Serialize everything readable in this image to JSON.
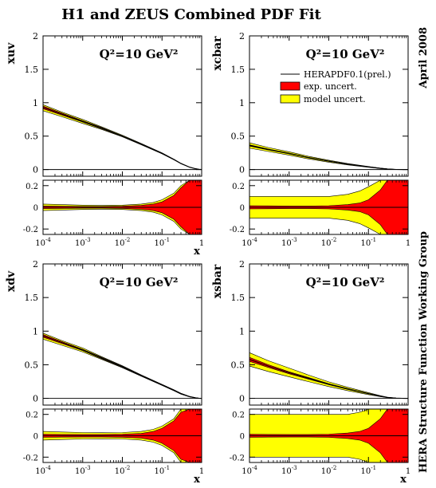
{
  "title": "H1 and ZEUS Combined PDF Fit",
  "side_labels": {
    "date": "April 2008",
    "group": "HERA Structure Function Working Group"
  },
  "colors": {
    "exp": "#ff0000",
    "model": "#ffff00",
    "line": "#000000"
  },
  "legend": {
    "central": "HERAPDF0.1(prel.)",
    "exp": "exp. uncert.",
    "model": "model uncert."
  },
  "chart_data": [
    {
      "type": "area",
      "panel": "top-left",
      "ylabel": "xuv",
      "annotation": "Q²=10 GeV²",
      "ylim": [
        -0.1,
        2
      ],
      "yticks": [
        0,
        0.5,
        1,
        1.5,
        2
      ],
      "xlim": [
        0.0001,
        1
      ],
      "x": [
        0.0001,
        0.0003,
        0.001,
        0.003,
        0.01,
        0.03,
        0.1,
        0.2,
        0.3,
        0.5,
        0.7,
        0.85,
        1
      ],
      "series": [
        {
          "name": "central",
          "values": [
            0.93,
            0.83,
            0.72,
            0.62,
            0.5,
            0.38,
            0.24,
            0.15,
            0.09,
            0.035,
            0.012,
            0.004,
            0
          ]
        },
        {
          "name": "model_lo",
          "values": [
            0.88,
            0.79,
            0.69,
            0.6,
            0.49,
            0.37,
            0.235,
            0.145,
            0.088,
            0.033,
            0.011,
            0.003,
            0
          ]
        },
        {
          "name": "model_hi",
          "values": [
            0.97,
            0.86,
            0.75,
            0.64,
            0.515,
            0.39,
            0.25,
            0.155,
            0.095,
            0.037,
            0.013,
            0.005,
            0
          ]
        },
        {
          "name": "exp_lo",
          "values": [
            0.91,
            0.815,
            0.71,
            0.61,
            0.495,
            0.375,
            0.237,
            0.148,
            0.089,
            0.034,
            0.0115,
            0.0035,
            0
          ]
        },
        {
          "name": "exp_hi",
          "values": [
            0.95,
            0.845,
            0.73,
            0.63,
            0.505,
            0.385,
            0.243,
            0.152,
            0.091,
            0.036,
            0.0125,
            0.0045,
            0
          ]
        }
      ]
    },
    {
      "type": "area",
      "panel": "top-right",
      "ylabel": "xcbar",
      "annotation": "Q²=10 GeV²",
      "ylim": [
        -0.1,
        2
      ],
      "yticks": [
        0,
        0.5,
        1,
        1.5,
        2
      ],
      "xlim": [
        0.0001,
        1
      ],
      "x": [
        0.0001,
        0.0003,
        0.001,
        0.003,
        0.01,
        0.03,
        0.1,
        0.2,
        0.3,
        0.5,
        0.7,
        0.85,
        1
      ],
      "series": [
        {
          "name": "central",
          "values": [
            0.36,
            0.3,
            0.24,
            0.18,
            0.125,
            0.08,
            0.04,
            0.018,
            0.008,
            0.002,
            0.0005,
            0.0001,
            0
          ]
        },
        {
          "name": "model_lo",
          "values": [
            0.32,
            0.27,
            0.215,
            0.16,
            0.11,
            0.07,
            0.034,
            0.014,
            0.005,
            0.001,
            0.0002,
            0,
            0
          ]
        },
        {
          "name": "model_hi",
          "values": [
            0.4,
            0.33,
            0.265,
            0.2,
            0.14,
            0.09,
            0.046,
            0.022,
            0.011,
            0.003,
            0.0008,
            0.0002,
            0
          ]
        },
        {
          "name": "exp_lo",
          "values": [
            0.35,
            0.293,
            0.235,
            0.176,
            0.122,
            0.078,
            0.038,
            0.016,
            0.007,
            0.0015,
            0.0003,
            0,
            0
          ]
        },
        {
          "name": "exp_hi",
          "values": [
            0.37,
            0.307,
            0.245,
            0.184,
            0.128,
            0.082,
            0.042,
            0.02,
            0.009,
            0.0025,
            0.0007,
            0.0002,
            0
          ]
        }
      ]
    },
    {
      "type": "area",
      "panel": "bottom-left",
      "ylabel": "xdv",
      "annotation": "Q²=10 GeV²",
      "ylim": [
        -0.1,
        2
      ],
      "yticks": [
        0,
        0.5,
        1,
        1.5,
        2
      ],
      "xlim": [
        0.0001,
        1
      ],
      "x": [
        0.0001,
        0.0003,
        0.001,
        0.003,
        0.01,
        0.03,
        0.1,
        0.2,
        0.3,
        0.5,
        0.7,
        0.85,
        1
      ],
      "series": [
        {
          "name": "central",
          "values": [
            0.93,
            0.83,
            0.72,
            0.6,
            0.47,
            0.34,
            0.2,
            0.12,
            0.07,
            0.025,
            0.008,
            0.002,
            0
          ]
        },
        {
          "name": "model_lo",
          "values": [
            0.88,
            0.79,
            0.69,
            0.58,
            0.455,
            0.33,
            0.192,
            0.112,
            0.063,
            0.021,
            0.006,
            0.001,
            0
          ]
        },
        {
          "name": "model_hi",
          "values": [
            0.97,
            0.86,
            0.75,
            0.62,
            0.485,
            0.35,
            0.208,
            0.128,
            0.077,
            0.029,
            0.01,
            0.003,
            0
          ]
        },
        {
          "name": "exp_lo",
          "values": [
            0.91,
            0.815,
            0.71,
            0.59,
            0.462,
            0.335,
            0.195,
            0.115,
            0.066,
            0.023,
            0.007,
            0.0015,
            0
          ]
        },
        {
          "name": "exp_hi",
          "values": [
            0.95,
            0.845,
            0.73,
            0.61,
            0.478,
            0.345,
            0.205,
            0.125,
            0.074,
            0.027,
            0.009,
            0.0025,
            0
          ]
        }
      ]
    },
    {
      "type": "area",
      "panel": "bottom-right",
      "ylabel": "xsbar",
      "annotation": "Q²=10 GeV²",
      "ylim": [
        -0.1,
        2
      ],
      "yticks": [
        0,
        0.5,
        1,
        1.5,
        2
      ],
      "xlim": [
        0.0001,
        1
      ],
      "x": [
        0.0001,
        0.0003,
        0.001,
        0.003,
        0.01,
        0.03,
        0.1,
        0.2,
        0.3,
        0.5,
        0.7,
        0.85,
        1
      ],
      "series": [
        {
          "name": "central",
          "values": [
            0.58,
            0.48,
            0.38,
            0.3,
            0.21,
            0.14,
            0.07,
            0.032,
            0.014,
            0.003,
            0.0006,
            0.0001,
            0
          ]
        },
        {
          "name": "model_lo",
          "values": [
            0.48,
            0.4,
            0.32,
            0.25,
            0.175,
            0.115,
            0.056,
            0.025,
            0.01,
            0.002,
            0.0003,
            0,
            0
          ]
        },
        {
          "name": "model_hi",
          "values": [
            0.68,
            0.56,
            0.45,
            0.35,
            0.245,
            0.165,
            0.085,
            0.04,
            0.018,
            0.004,
            0.001,
            0.0002,
            0
          ]
        },
        {
          "name": "exp_lo",
          "values": [
            0.55,
            0.46,
            0.365,
            0.288,
            0.202,
            0.134,
            0.067,
            0.03,
            0.013,
            0.0025,
            0.0005,
            0,
            0
          ]
        },
        {
          "name": "exp_hi",
          "values": [
            0.61,
            0.5,
            0.395,
            0.312,
            0.218,
            0.146,
            0.073,
            0.034,
            0.015,
            0.0035,
            0.0007,
            0.0002,
            0
          ]
        }
      ]
    },
    {
      "type": "area",
      "panel": "top-left-ratio",
      "ylim": [
        -0.25,
        0.25
      ],
      "yticks": [
        -0.2,
        0,
        0.2
      ],
      "xlim": [
        0.0001,
        1
      ],
      "xlabel": "x",
      "xticks": [
        "10^-4",
        "10^-3",
        "10^-2",
        "10^-1",
        "1"
      ],
      "x": [
        0.0001,
        0.0003,
        0.001,
        0.003,
        0.01,
        0.03,
        0.06,
        0.1,
        0.2,
        0.3,
        0.5,
        0.7,
        1
      ],
      "series": [
        {
          "name": "model_lo",
          "values": [
            -0.03,
            -0.025,
            -0.02,
            -0.018,
            -0.02,
            -0.03,
            -0.045,
            -0.07,
            -0.13,
            -0.2,
            -0.25,
            -0.25,
            -0.25
          ]
        },
        {
          "name": "model_hi",
          "values": [
            0.03,
            0.025,
            0.02,
            0.018,
            0.02,
            0.03,
            0.045,
            0.07,
            0.13,
            0.2,
            0.25,
            0.25,
            0.25
          ]
        },
        {
          "name": "exp_lo",
          "values": [
            -0.012,
            -0.01,
            -0.008,
            -0.008,
            -0.01,
            -0.018,
            -0.03,
            -0.05,
            -0.11,
            -0.18,
            -0.25,
            -0.25,
            -0.25
          ]
        },
        {
          "name": "exp_hi",
          "values": [
            0.012,
            0.01,
            0.008,
            0.008,
            0.01,
            0.018,
            0.03,
            0.05,
            0.11,
            0.18,
            0.25,
            0.25,
            0.25
          ]
        }
      ]
    },
    {
      "type": "area",
      "panel": "top-right-ratio",
      "ylim": [
        -0.25,
        0.25
      ],
      "yticks": [
        -0.2,
        0,
        0.2
      ],
      "xlim": [
        0.0001,
        1
      ],
      "xlabel": "",
      "xticks": [
        "10^-4",
        "10^-3",
        "10^-2",
        "10^-1",
        "1"
      ],
      "x": [
        0.0001,
        0.0003,
        0.001,
        0.003,
        0.01,
        0.03,
        0.06,
        0.1,
        0.2,
        0.3,
        0.5,
        0.7,
        1
      ],
      "series": [
        {
          "name": "model_lo",
          "values": [
            -0.1,
            -0.1,
            -0.1,
            -0.1,
            -0.1,
            -0.12,
            -0.15,
            -0.19,
            -0.25,
            -0.25,
            -0.25,
            -0.25,
            -0.25
          ]
        },
        {
          "name": "model_hi",
          "values": [
            0.1,
            0.1,
            0.1,
            0.1,
            0.1,
            0.12,
            0.15,
            0.19,
            0.25,
            0.25,
            0.25,
            0.25,
            0.25
          ]
        },
        {
          "name": "exp_lo",
          "values": [
            -0.015,
            -0.013,
            -0.012,
            -0.012,
            -0.015,
            -0.025,
            -0.04,
            -0.07,
            -0.16,
            -0.25,
            -0.25,
            -0.25,
            -0.25
          ]
        },
        {
          "name": "exp_hi",
          "values": [
            0.015,
            0.013,
            0.012,
            0.012,
            0.015,
            0.025,
            0.04,
            0.07,
            0.16,
            0.25,
            0.25,
            0.25,
            0.25
          ]
        }
      ]
    },
    {
      "type": "area",
      "panel": "bottom-left-ratio",
      "ylim": [
        -0.25,
        0.25
      ],
      "yticks": [
        -0.2,
        0,
        0.2
      ],
      "xlim": [
        0.0001,
        1
      ],
      "xlabel": "x",
      "xticks": [
        "10^-4",
        "10^-3",
        "10^-2",
        "10^-1",
        "1"
      ],
      "x": [
        0.0001,
        0.0003,
        0.001,
        0.003,
        0.01,
        0.03,
        0.06,
        0.1,
        0.2,
        0.3,
        0.5,
        0.7,
        1
      ],
      "series": [
        {
          "name": "model_lo",
          "values": [
            -0.04,
            -0.035,
            -0.03,
            -0.028,
            -0.03,
            -0.04,
            -0.06,
            -0.09,
            -0.16,
            -0.25,
            -0.25,
            -0.25,
            -0.25
          ]
        },
        {
          "name": "model_hi",
          "values": [
            0.04,
            0.035,
            0.03,
            0.028,
            0.03,
            0.04,
            0.06,
            0.09,
            0.16,
            0.25,
            0.25,
            0.25,
            0.25
          ]
        },
        {
          "name": "exp_lo",
          "values": [
            -0.015,
            -0.013,
            -0.012,
            -0.012,
            -0.014,
            -0.022,
            -0.04,
            -0.07,
            -0.14,
            -0.22,
            -0.25,
            -0.25,
            -0.25
          ]
        },
        {
          "name": "exp_hi",
          "values": [
            0.015,
            0.013,
            0.012,
            0.012,
            0.014,
            0.022,
            0.04,
            0.07,
            0.14,
            0.22,
            0.25,
            0.25,
            0.25
          ]
        }
      ]
    },
    {
      "type": "area",
      "panel": "bottom-right-ratio",
      "ylim": [
        -0.25,
        0.25
      ],
      "yticks": [
        -0.2,
        0,
        0.2
      ],
      "xlim": [
        0.0001,
        1
      ],
      "xlabel": "x",
      "xticks": [
        "10^-4",
        "10^-3",
        "10^-2",
        "10^-1",
        "1"
      ],
      "x": [
        0.0001,
        0.0003,
        0.001,
        0.003,
        0.01,
        0.03,
        0.06,
        0.1,
        0.2,
        0.3,
        0.5,
        0.7,
        1
      ],
      "series": [
        {
          "name": "model_lo",
          "values": [
            -0.2,
            -0.2,
            -0.2,
            -0.2,
            -0.2,
            -0.2,
            -0.22,
            -0.25,
            -0.25,
            -0.25,
            -0.25,
            -0.25,
            -0.25
          ]
        },
        {
          "name": "model_hi",
          "values": [
            0.2,
            0.2,
            0.2,
            0.2,
            0.2,
            0.2,
            0.22,
            0.25,
            0.25,
            0.25,
            0.25,
            0.25,
            0.25
          ]
        },
        {
          "name": "exp_lo",
          "values": [
            -0.015,
            -0.013,
            -0.012,
            -0.012,
            -0.015,
            -0.025,
            -0.04,
            -0.07,
            -0.16,
            -0.25,
            -0.25,
            -0.25,
            -0.25
          ]
        },
        {
          "name": "exp_hi",
          "values": [
            0.015,
            0.013,
            0.012,
            0.012,
            0.015,
            0.025,
            0.04,
            0.07,
            0.16,
            0.25,
            0.25,
            0.25,
            0.25
          ]
        }
      ]
    }
  ]
}
